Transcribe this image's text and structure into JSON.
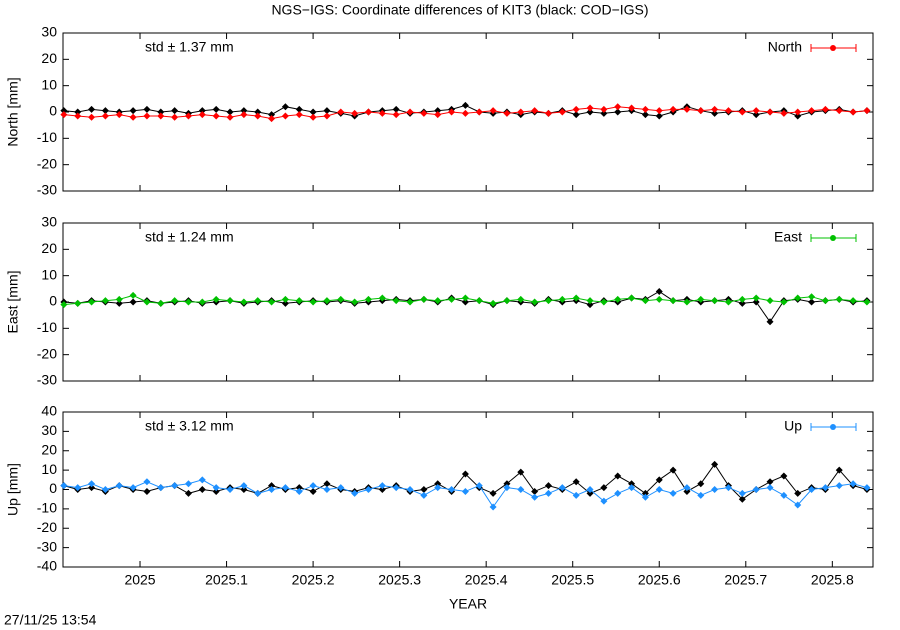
{
  "title": "NGS−IGS: Coordinate differences of KIT3 (black: COD−IGS)",
  "timestamp": "27/11/25 13:54",
  "chart_data": [
    {
      "type": "line",
      "ylabel": "North [mm]",
      "annotation": "std ± 1.37 mm",
      "ylim": [
        -30,
        30
      ],
      "yticks": [
        -30,
        -20,
        -10,
        0,
        10,
        20,
        30
      ],
      "xlim": [
        2024.911,
        2025.847
      ],
      "xticks": [
        2025,
        2025.1,
        2025.2,
        2025.3,
        2025.4,
        2025.5,
        2025.6,
        2025.7,
        2025.8
      ],
      "x": [
        2024.912,
        2024.928,
        2024.944,
        2024.96,
        2024.976,
        2024.992,
        2025.008,
        2025.024,
        2025.04,
        2025.056,
        2025.072,
        2025.088,
        2025.104,
        2025.12,
        2025.136,
        2025.152,
        2025.168,
        2025.184,
        2025.2,
        2025.216,
        2025.232,
        2025.248,
        2025.264,
        2025.28,
        2025.296,
        2025.312,
        2025.328,
        2025.344,
        2025.36,
        2025.376,
        2025.392,
        2025.408,
        2025.424,
        2025.44,
        2025.456,
        2025.472,
        2025.488,
        2025.504,
        2025.52,
        2025.536,
        2025.552,
        2025.568,
        2025.584,
        2025.6,
        2025.616,
        2025.632,
        2025.648,
        2025.664,
        2025.68,
        2025.696,
        2025.712,
        2025.728,
        2025.744,
        2025.76,
        2025.776,
        2025.792,
        2025.808,
        2025.824,
        2025.84
      ],
      "series": [
        {
          "color": "#000000",
          "values": [
            0.5,
            0,
            1,
            0.5,
            0,
            0.5,
            1,
            0,
            0.5,
            -0.5,
            0.5,
            1,
            0,
            0.5,
            0,
            -1,
            2,
            1,
            0,
            0.5,
            -0.5,
            -1.5,
            0,
            0.5,
            1,
            -0.5,
            0,
            0.5,
            1,
            2.5,
            0,
            -0.5,
            0,
            -1,
            0,
            -0.5,
            0.5,
            -1,
            0,
            -0.5,
            0,
            0.5,
            -1,
            -1.5,
            0,
            2,
            0.5,
            -0.5,
            0,
            0.5,
            -1,
            0,
            0.5,
            -1.5,
            0,
            0.5,
            1,
            0,
            0.5
          ]
        },
        {
          "name": "North",
          "color": "#ff0000",
          "values": [
            -1,
            -1.5,
            -2,
            -1.5,
            -1,
            -2,
            -1.5,
            -1.5,
            -2,
            -1.5,
            -1,
            -1.5,
            -2,
            -1,
            -1.5,
            -2.5,
            -1.5,
            -1,
            -2,
            -1.5,
            0,
            -0.5,
            0,
            -0.5,
            -1,
            0,
            -0.5,
            -1,
            0,
            -0.5,
            0,
            0.5,
            -0.5,
            0,
            0.5,
            -0.5,
            0,
            1,
            1.5,
            1,
            2,
            1.5,
            1,
            0.5,
            1,
            1,
            0.5,
            1,
            0.5,
            0,
            0.5,
            0,
            -0.5,
            0,
            0.5,
            1,
            0.5,
            0,
            0.5
          ]
        }
      ]
    },
    {
      "type": "line",
      "ylabel": "East [mm]",
      "annotation": "std ± 1.24 mm",
      "ylim": [
        -30,
        30
      ],
      "yticks": [
        -30,
        -20,
        -10,
        0,
        10,
        20,
        30
      ],
      "xlim": [
        2024.911,
        2025.847
      ],
      "xticks": [
        2025,
        2025.1,
        2025.2,
        2025.3,
        2025.4,
        2025.5,
        2025.6,
        2025.7,
        2025.8
      ],
      "x": [
        2024.912,
        2024.928,
        2024.944,
        2024.96,
        2024.976,
        2024.992,
        2025.008,
        2025.024,
        2025.04,
        2025.056,
        2025.072,
        2025.088,
        2025.104,
        2025.12,
        2025.136,
        2025.152,
        2025.168,
        2025.184,
        2025.2,
        2025.216,
        2025.232,
        2025.248,
        2025.264,
        2025.28,
        2025.296,
        2025.312,
        2025.328,
        2025.344,
        2025.36,
        2025.376,
        2025.392,
        2025.408,
        2025.424,
        2025.44,
        2025.456,
        2025.472,
        2025.488,
        2025.504,
        2025.52,
        2025.536,
        2025.552,
        2025.568,
        2025.584,
        2025.6,
        2025.616,
        2025.632,
        2025.648,
        2025.664,
        2025.68,
        2025.696,
        2025.712,
        2025.728,
        2025.744,
        2025.76,
        2025.776,
        2025.792,
        2025.808,
        2025.824,
        2025.84
      ],
      "series": [
        {
          "color": "#000000",
          "values": [
            0,
            -0.5,
            0.5,
            0,
            -0.5,
            0,
            0.5,
            -0.5,
            0,
            0.5,
            -0.5,
            0,
            0.5,
            -0.5,
            0,
            0.5,
            -0.5,
            0,
            0.5,
            0,
            0.5,
            -0.5,
            0,
            0.5,
            1,
            0.5,
            1,
            0,
            1.5,
            0,
            0.5,
            -1,
            0.5,
            0,
            -0.5,
            1,
            0,
            0.5,
            -1,
            0.5,
            0,
            1.5,
            1,
            4,
            0.5,
            1,
            0,
            0.5,
            1,
            -0.5,
            0,
            -7.5,
            0.5,
            1,
            0,
            0.5,
            1,
            0,
            0.5
          ]
        },
        {
          "name": "East",
          "color": "#00c000",
          "values": [
            -1,
            -0.5,
            0,
            0.5,
            1,
            2.5,
            0,
            -0.5,
            0.5,
            0,
            0,
            1,
            0.5,
            0,
            0.5,
            0,
            1,
            0.5,
            0,
            0.5,
            1,
            0,
            1,
            1.5,
            0.5,
            0,
            1,
            0.5,
            1,
            1.5,
            0.5,
            -0.5,
            0.5,
            1,
            0,
            0.5,
            1,
            1.5,
            0.5,
            0,
            1,
            1.5,
            0.5,
            1,
            0.5,
            0,
            1,
            0.5,
            0,
            1,
            1.5,
            0.5,
            0,
            1.5,
            2,
            0.5,
            1,
            0.5,
            0
          ]
        }
      ]
    },
    {
      "type": "line",
      "ylabel": "Up [mm]",
      "xlabel": "YEAR",
      "annotation": "std ± 3.12 mm",
      "ylim": [
        -40,
        40
      ],
      "yticks": [
        -40,
        -30,
        -20,
        -10,
        0,
        10,
        20,
        30,
        40
      ],
      "xlim": [
        2024.911,
        2025.847
      ],
      "xticks": [
        2025,
        2025.1,
        2025.2,
        2025.3,
        2025.4,
        2025.5,
        2025.6,
        2025.7,
        2025.8
      ],
      "x": [
        2024.912,
        2024.928,
        2024.944,
        2024.96,
        2024.976,
        2024.992,
        2025.008,
        2025.024,
        2025.04,
        2025.056,
        2025.072,
        2025.088,
        2025.104,
        2025.12,
        2025.136,
        2025.152,
        2025.168,
        2025.184,
        2025.2,
        2025.216,
        2025.232,
        2025.248,
        2025.264,
        2025.28,
        2025.296,
        2025.312,
        2025.328,
        2025.344,
        2025.36,
        2025.376,
        2025.392,
        2025.408,
        2025.424,
        2025.44,
        2025.456,
        2025.472,
        2025.488,
        2025.504,
        2025.52,
        2025.536,
        2025.552,
        2025.568,
        2025.584,
        2025.6,
        2025.616,
        2025.632,
        2025.648,
        2025.664,
        2025.68,
        2025.696,
        2025.712,
        2025.728,
        2025.744,
        2025.76,
        2025.776,
        2025.792,
        2025.808,
        2025.824,
        2025.84
      ],
      "series": [
        {
          "color": "#000000",
          "values": [
            2,
            0,
            1,
            -1,
            2,
            0,
            -1,
            1,
            2,
            -2,
            0,
            -1,
            1,
            0,
            -2,
            2,
            0,
            1,
            -1,
            3,
            0,
            -1,
            1,
            0,
            2,
            -1,
            0,
            3,
            -1,
            8,
            1,
            -2,
            3,
            9,
            -1,
            2,
            0,
            4,
            -2,
            1,
            7,
            3,
            -2,
            5,
            10,
            -1,
            3,
            13,
            2,
            -5,
            0,
            4,
            7,
            -2,
            1,
            0,
            10,
            2,
            0
          ]
        },
        {
          "name": "Up",
          "color": "#1e90ff",
          "values": [
            2,
            1,
            3,
            0,
            2,
            1,
            4,
            1,
            2,
            3,
            5,
            1,
            0,
            2,
            -2,
            0,
            1,
            -1,
            2,
            0,
            1,
            -2,
            0,
            2,
            1,
            0,
            -3,
            1,
            0,
            -1,
            2,
            -9,
            1,
            0,
            -4,
            -2,
            1,
            -3,
            0,
            -6,
            -2,
            1,
            -4,
            0,
            -2,
            1,
            -3,
            0,
            1,
            -2,
            0,
            1,
            -3,
            -8,
            0,
            1,
            2,
            3,
            1
          ]
        }
      ]
    }
  ]
}
